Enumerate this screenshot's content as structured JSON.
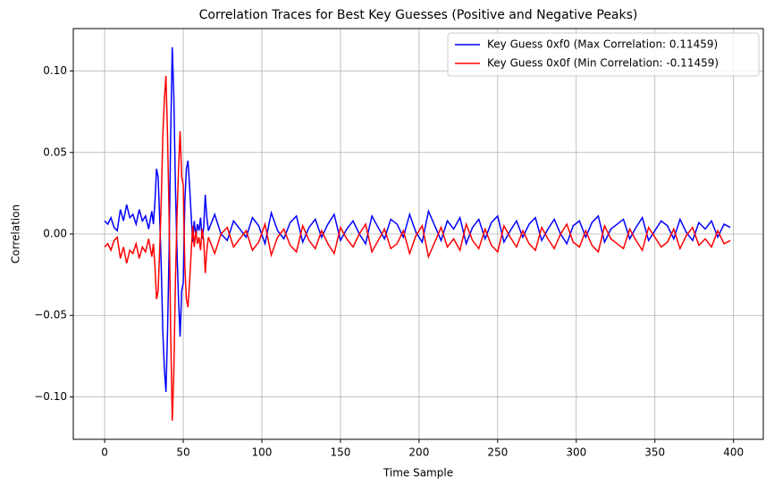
{
  "chart_data": {
    "type": "line",
    "title": "Correlation Traces for Best Key Guesses (Positive and Negative Peaks)",
    "x_label": "Time Sample",
    "y_label": "Correlation",
    "x": [
      0,
      2,
      4,
      6,
      8,
      10,
      12,
      14,
      16,
      18,
      20,
      22,
      24,
      26,
      28,
      30,
      31,
      32,
      33,
      34,
      35,
      36,
      37,
      38,
      39,
      40,
      41,
      42,
      43,
      44,
      45,
      46,
      47,
      48,
      49,
      50,
      51,
      52,
      53,
      54,
      55,
      56,
      57,
      58,
      59,
      60,
      61,
      62,
      63,
      64,
      65,
      66,
      70,
      74,
      78,
      82,
      86,
      90,
      94,
      98,
      102,
      106,
      110,
      114,
      118,
      122,
      126,
      130,
      134,
      138,
      142,
      146,
      150,
      154,
      158,
      162,
      166,
      170,
      174,
      178,
      182,
      186,
      190,
      194,
      198,
      202,
      206,
      210,
      214,
      218,
      222,
      226,
      230,
      234,
      238,
      242,
      246,
      250,
      254,
      258,
      262,
      266,
      270,
      274,
      278,
      282,
      286,
      290,
      294,
      298,
      302,
      306,
      310,
      314,
      318,
      322,
      326,
      330,
      334,
      338,
      342,
      346,
      350,
      354,
      358,
      362,
      366,
      370,
      374,
      378,
      382,
      386,
      390,
      394,
      398
    ],
    "series": [
      {
        "name": "Key Guess 0xf0 (Max Correlation: 0.11459)",
        "color": "#0000ff",
        "values": [
          0.008,
          0.006,
          0.01,
          0.004,
          0.002,
          0.015,
          0.008,
          0.018,
          0.01,
          0.012,
          0.006,
          0.015,
          0.008,
          0.011,
          0.003,
          0.014,
          0.006,
          0.02,
          0.04,
          0.035,
          0.01,
          -0.02,
          -0.06,
          -0.083,
          -0.097,
          -0.06,
          -0.01,
          0.06,
          0.11459,
          0.085,
          0.03,
          -0.01,
          -0.04,
          -0.063,
          -0.035,
          -0.03,
          0.02,
          0.04,
          0.045,
          0.03,
          0.012,
          -0.005,
          0.008,
          -0.002,
          0.006,
          0.002,
          0.01,
          -0.003,
          0.004,
          0.024,
          0.01,
          0.002,
          0.012,
          0,
          -0.004,
          0.008,
          0.003,
          -0.002,
          0.01,
          0.005,
          -0.006,
          0.013,
          0.002,
          -0.003,
          0.007,
          0.011,
          -0.005,
          0.004,
          0.009,
          -0.002,
          0.006,
          0.012,
          -0.004,
          0.003,
          0.008,
          0,
          -0.006,
          0.011,
          0.004,
          -0.003,
          0.009,
          0.006,
          -0.002,
          0.012,
          0.001,
          -0.005,
          0.014,
          0.005,
          -0.004,
          0.008,
          0.003,
          0.01,
          -0.006,
          0.004,
          0.009,
          -0.003,
          0.007,
          0.011,
          -0.005,
          0.002,
          0.008,
          -0.002,
          0.006,
          0.01,
          -0.004,
          0.003,
          0.009,
          0,
          -0.006,
          0.005,
          0.008,
          -0.002,
          0.007,
          0.011,
          -0.005,
          0.003,
          0.006,
          0.009,
          -0.003,
          0.004,
          0.01,
          -0.004,
          0.002,
          0.008,
          0.005,
          -0.003,
          0.009,
          0.001,
          -0.004,
          0.007,
          0.003,
          0.008,
          -0.002,
          0.006,
          0.004
        ]
      },
      {
        "name": "Key Guess 0x0f (Min Correlation: -0.11459)",
        "color": "#ff0000",
        "values": [
          -0.008,
          -0.006,
          -0.01,
          -0.004,
          -0.002,
          -0.015,
          -0.008,
          -0.018,
          -0.01,
          -0.012,
          -0.006,
          -0.015,
          -0.008,
          -0.011,
          -0.003,
          -0.014,
          -0.006,
          -0.02,
          -0.04,
          -0.035,
          -0.01,
          0.02,
          0.06,
          0.083,
          0.097,
          0.06,
          0.01,
          -0.06,
          -0.11459,
          -0.085,
          -0.03,
          0.01,
          0.04,
          0.063,
          0.035,
          0.03,
          -0.02,
          -0.04,
          -0.045,
          -0.03,
          -0.012,
          0.005,
          -0.008,
          0.002,
          -0.006,
          -0.002,
          -0.01,
          0.003,
          -0.004,
          -0.024,
          -0.01,
          -0.002,
          -0.012,
          0,
          0.004,
          -0.008,
          -0.003,
          0.002,
          -0.01,
          -0.005,
          0.006,
          -0.013,
          -0.002,
          0.003,
          -0.007,
          -0.011,
          0.005,
          -0.004,
          -0.009,
          0.002,
          -0.006,
          -0.012,
          0.004,
          -0.003,
          -0.008,
          0,
          0.006,
          -0.011,
          -0.004,
          0.003,
          -0.009,
          -0.006,
          0.002,
          -0.012,
          -0.001,
          0.005,
          -0.014,
          -0.005,
          0.004,
          -0.008,
          -0.003,
          -0.01,
          0.006,
          -0.004,
          -0.009,
          0.003,
          -0.007,
          -0.011,
          0.005,
          -0.002,
          -0.008,
          0.002,
          -0.006,
          -0.01,
          0.004,
          -0.003,
          -0.009,
          0,
          0.006,
          -0.005,
          -0.008,
          0.002,
          -0.007,
          -0.011,
          0.005,
          -0.003,
          -0.006,
          -0.009,
          0.003,
          -0.004,
          -0.01,
          0.004,
          -0.002,
          -0.008,
          -0.005,
          0.003,
          -0.009,
          -0.001,
          0.004,
          -0.007,
          -0.003,
          -0.008,
          0.002,
          -0.006,
          -0.004
        ]
      }
    ],
    "xlim": [
      -19.95,
      418.95
    ],
    "xticks": [
      0,
      50,
      100,
      150,
      200,
      250,
      300,
      350,
      400
    ],
    "ylim": [
      -0.126049,
      0.126049
    ],
    "yticks": [
      {
        "value": -0.1,
        "label": "−0.10"
      },
      {
        "value": -0.05,
        "label": "−0.05"
      },
      {
        "value": 0,
        "label": "0.00"
      },
      {
        "value": 0.05,
        "label": "0.05"
      },
      {
        "value": 0.1,
        "label": "0.10"
      }
    ],
    "grid": true,
    "legend": "upper right"
  }
}
